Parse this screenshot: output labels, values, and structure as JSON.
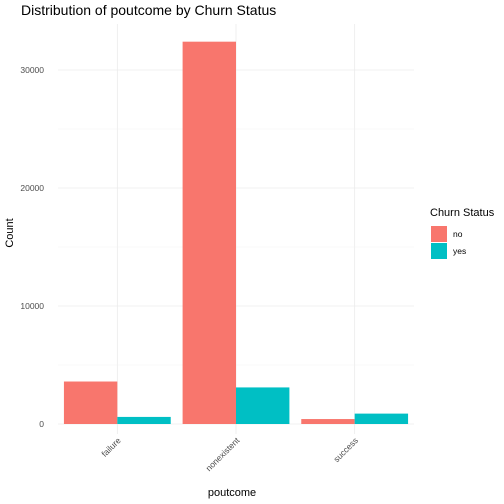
{
  "chart_data": {
    "type": "bar",
    "title": "Distribution of poutcome by Churn Status",
    "xlabel": "poutcome",
    "ylabel": "Count",
    "categories": [
      "failure",
      "nonexistent",
      "success"
    ],
    "series": [
      {
        "name": "no",
        "values": [
          3600,
          32400,
          420
        ],
        "color": "#F8766D"
      },
      {
        "name": "yes",
        "values": [
          600,
          3100,
          880
        ],
        "color": "#00BFC4"
      }
    ],
    "ylim": [
      0,
      34000
    ],
    "yticks": [
      0,
      10000,
      20000,
      30000
    ],
    "ytick_labels": [
      "0",
      "10000",
      "20000",
      "30000"
    ],
    "grid": true,
    "legend": {
      "title": "Churn Status",
      "position": "right"
    }
  }
}
